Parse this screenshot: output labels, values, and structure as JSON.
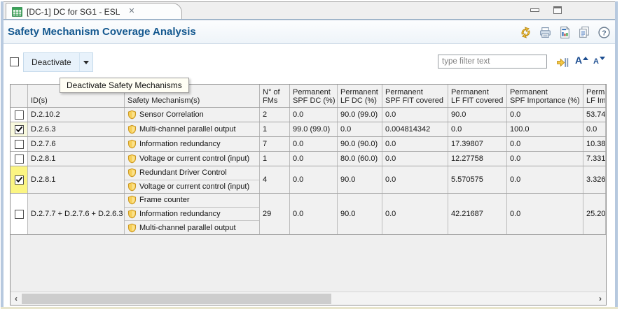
{
  "window": {
    "controls": {
      "minimize": "minimize-window",
      "maximize": "maximize-window"
    }
  },
  "tab": {
    "title": "[DC-1] DC for SG1 - ESL",
    "icon": "table-grid-icon",
    "close_glyph": "✕"
  },
  "header": {
    "title": "Safety Mechanism Coverage Analysis",
    "icons": [
      "sync-icon",
      "print-icon",
      "report-icon",
      "copy-icon",
      "help-icon"
    ]
  },
  "toolbar": {
    "deactivate_label": "Deactivate",
    "tooltip": "Deactivate Safety Mechanisms",
    "filter_placeholder": "type filter text",
    "font_letter": "A",
    "icons": [
      "collapse-columns-icon",
      "font-increase-icon",
      "font-decrease-icon"
    ]
  },
  "scrollbar": {
    "left_glyph": "‹",
    "right_glyph": "›"
  },
  "colors": {
    "title_blue": "#14588f",
    "checked_row_pale": "#f8f9dd",
    "checked_row_yellow": "#fbf582",
    "shield_gold": "#f7cf57",
    "button_blue": "#e8f2fb"
  },
  "table": {
    "headers": [
      [
        "ID(s)"
      ],
      [
        "Safety Mechanism(s)"
      ],
      [
        "N° of",
        "FMs"
      ],
      [
        "Permanent",
        "SPF DC (%)"
      ],
      [
        "Permanent",
        "LF DC (%)"
      ],
      [
        "Permanent",
        "SPF FIT covered"
      ],
      [
        "Permanent",
        "LF FIT covered"
      ],
      [
        "Permanent",
        "SPF Importance (%)"
      ],
      [
        "Permanent",
        "LF Importance (%)"
      ]
    ],
    "rows": [
      {
        "checked": false,
        "highlight": "none",
        "id": "D.2.10.2",
        "mechanisms": [
          "Sensor Correlation"
        ],
        "values": [
          "2",
          "0.0",
          "90.0 (99.0)",
          "0.0",
          "90.0",
          "0.0",
          "53.74"
        ]
      },
      {
        "checked": true,
        "highlight": "pale",
        "id": "D.2.6.3",
        "mechanisms": [
          "Multi-channel parallel output"
        ],
        "values": [
          "1",
          "99.0 (99.0)",
          "0.0",
          "0.004814342",
          "0.0",
          "100.0",
          "0.0"
        ]
      },
      {
        "checked": false,
        "highlight": "none",
        "id": "D.2.7.6",
        "mechanisms": [
          "Information redundancy"
        ],
        "values": [
          "7",
          "0.0",
          "90.0 (90.0)",
          "0.0",
          "17.39807",
          "0.0",
          "10.38"
        ]
      },
      {
        "checked": false,
        "highlight": "none",
        "id": "D.2.8.1",
        "mechanisms": [
          "Voltage or current control (input)"
        ],
        "values": [
          "1",
          "0.0",
          "80.0 (60.0)",
          "0.0",
          "12.27758",
          "0.0",
          "7.331"
        ]
      },
      {
        "checked": true,
        "highlight": "yellow",
        "id": "D.2.8.1",
        "mechanisms": [
          "Redundant Driver Control",
          "Voltage or current control (input)"
        ],
        "values": [
          "4",
          "0.0",
          "90.0",
          "0.0",
          "5.570575",
          "0.0",
          "3.326"
        ]
      },
      {
        "checked": false,
        "highlight": "none",
        "id": "D.2.7.7 + D.2.7.6 + D.2.6.3",
        "mechanisms": [
          "Frame counter",
          "Information redundancy",
          "Multi-channel parallel output"
        ],
        "values": [
          "29",
          "0.0",
          "90.0",
          "0.0",
          "42.21687",
          "0.0",
          "25.20"
        ]
      }
    ]
  }
}
